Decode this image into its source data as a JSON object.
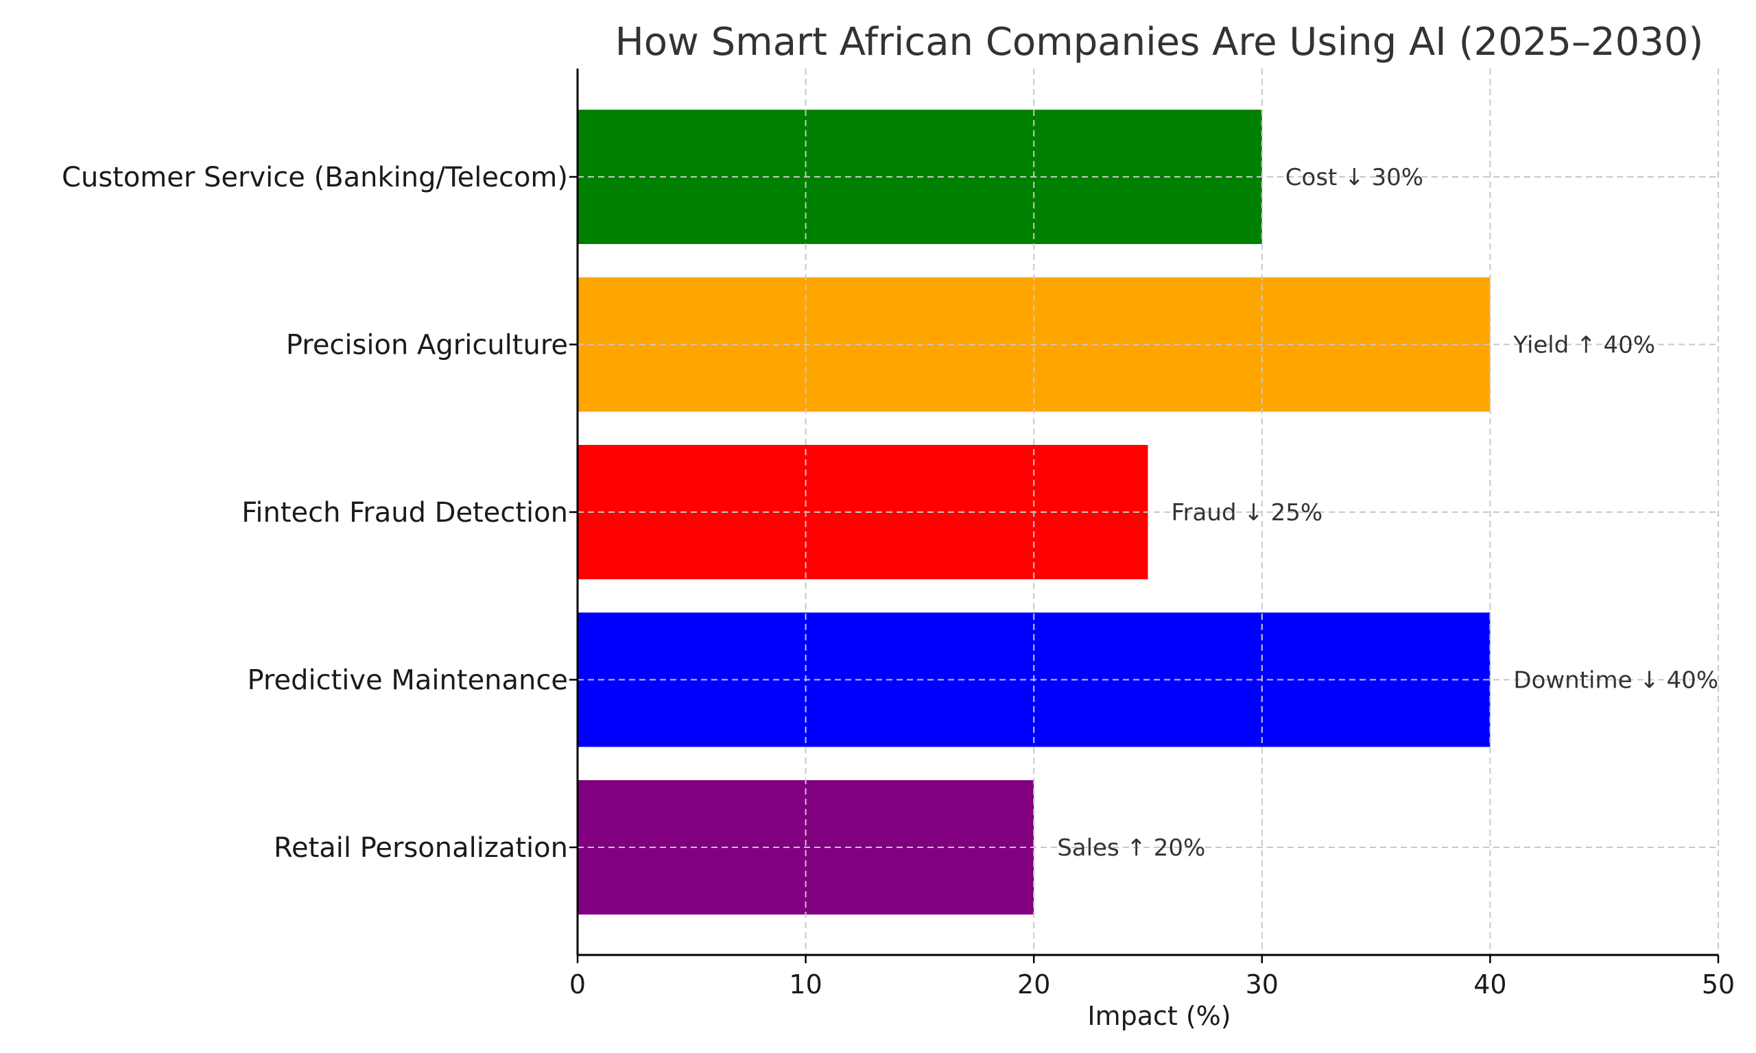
{
  "chart_data": {
    "type": "bar",
    "orientation": "horizontal",
    "title": "How Smart African Companies Are Using AI (2025–2030)",
    "xlabel": "Impact (%)",
    "ylabel": "",
    "xlim": [
      0,
      50
    ],
    "xticks": [
      0,
      10,
      20,
      30,
      40,
      50
    ],
    "xtick_labels": [
      "0",
      "10",
      "20",
      "30",
      "40",
      "50"
    ],
    "grid": true,
    "categories": [
      "Customer Service (Banking/Telecom)",
      "Precision Agriculture",
      "Fintech Fraud Detection",
      "Predictive Maintenance",
      "Retail Personalization"
    ],
    "values": [
      30,
      40,
      25,
      40,
      20
    ],
    "colors": [
      "#008000",
      "#FFA500",
      "#FF0000",
      "#0000FF",
      "#800080"
    ],
    "annotations": [
      "Cost ↓ 30%",
      "Yield ↑ 40%",
      "Fraud ↓ 25%",
      "Downtime ↓ 40%",
      "Sales ↑ 20%"
    ]
  }
}
